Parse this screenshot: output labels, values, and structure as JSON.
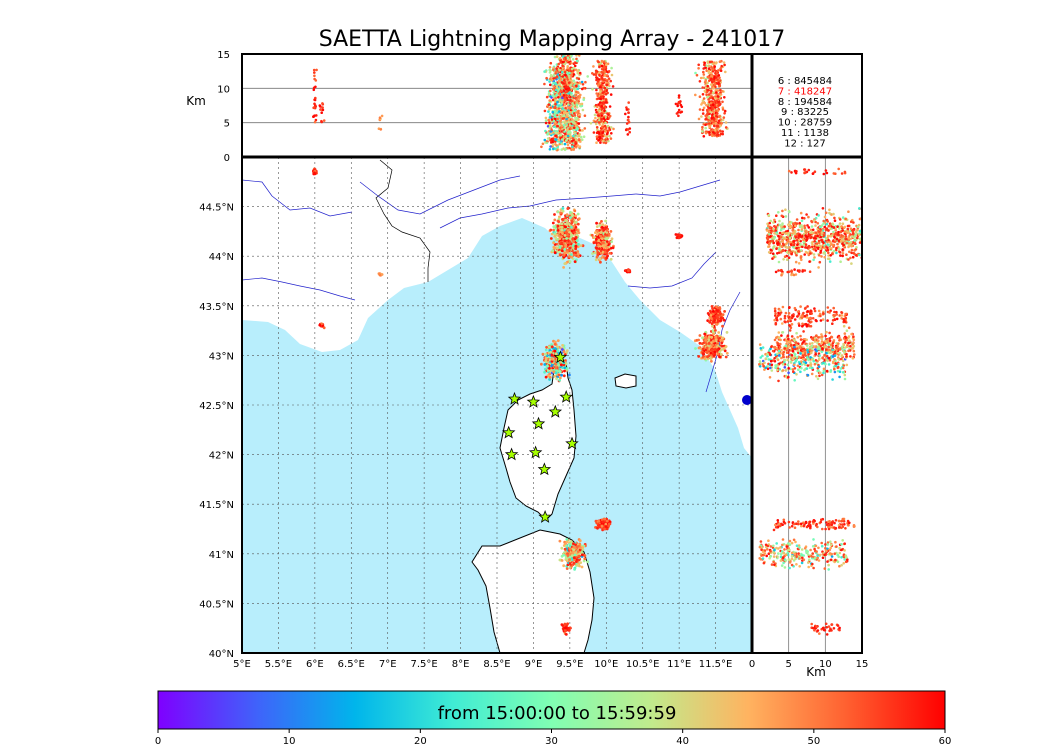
{
  "title": "SAETTA Lightning Mapping Array - 241017",
  "top_panel": {
    "ylabel": "Km",
    "yticks": [
      "15",
      "10",
      "5",
      "0"
    ]
  },
  "side_panel": {
    "xlabel": "Km",
    "xticks": [
      "0",
      "5",
      "10",
      "15"
    ]
  },
  "map": {
    "lon_ticks": [
      "5°E",
      "5.5°E",
      "6°E",
      "6.5°E",
      "7°E",
      "7.5°E",
      "8°E",
      "8.5°E",
      "9°E",
      "9.5°E",
      "10°E",
      "10.5°E",
      "11°E",
      "11.5°E"
    ],
    "lat_ticks": [
      "44.5°N",
      "44°N",
      "43.5°N",
      "43°N",
      "42.5°N",
      "42°N",
      "41.5°N",
      "41°N",
      "40.5°N",
      "40°N"
    ],
    "sea_color": "#b8eefc",
    "land_color": "#ffffff",
    "river_color": "#2222cc",
    "station_color": "#a6ff00"
  },
  "station_counts": [
    {
      "stations": "6",
      "count": "845484",
      "color": "#000000"
    },
    {
      "stations": "7",
      "count": "418247",
      "color": "#ff0000"
    },
    {
      "stations": "8",
      "count": "194584",
      "color": "#000000"
    },
    {
      "stations": "9",
      "count": "83225",
      "color": "#000000"
    },
    {
      "stations": "10",
      "count": "28759",
      "color": "#000000"
    },
    {
      "stations": "11",
      "count": "1138",
      "color": "#000000"
    },
    {
      "stations": "12",
      "count": "127",
      "color": "#000000"
    }
  ],
  "colorbar": {
    "label": "from 15:00:00 to 15:59:59",
    "ticks": [
      "0",
      "10",
      "20",
      "30",
      "40",
      "50",
      "60"
    ],
    "range": [
      0,
      60
    ],
    "colors": [
      "#7f00ff",
      "#4062fa",
      "#00b5eb",
      "#40ecd4",
      "#80feb3",
      "#c0eb8d",
      "#ffb360",
      "#ff6030",
      "#ff0000"
    ]
  },
  "chart_data": {
    "type": "scatter",
    "title": "SAETTA Lightning Mapping Array - 241017",
    "xlabel": "",
    "ylabel": "",
    "xlim": [
      5,
      12
    ],
    "ylim": [
      40,
      45
    ],
    "zlim_km": [
      0,
      15
    ],
    "time_range_minutes": [
      0,
      60
    ],
    "clusters": [
      {
        "lon": 9.45,
        "lat": 44.2,
        "lon_spread": 0.25,
        "lat_spread": 0.35,
        "alt_min": 2,
        "alt_max": 15,
        "time_min": 20,
        "time_max": 60,
        "density": 520
      },
      {
        "lon": 9.95,
        "lat": 44.15,
        "lon_spread": 0.18,
        "lat_spread": 0.25,
        "alt_min": 2,
        "alt_max": 14,
        "time_min": 30,
        "time_max": 60,
        "density": 260
      },
      {
        "lon": 11.45,
        "lat": 43.1,
        "lon_spread": 0.25,
        "lat_spread": 0.2,
        "alt_min": 3,
        "alt_max": 14,
        "time_min": 30,
        "time_max": 60,
        "density": 330
      },
      {
        "lon": 11.5,
        "lat": 43.4,
        "lon_spread": 0.15,
        "lat_spread": 0.15,
        "alt_min": 3,
        "alt_max": 13,
        "time_min": 40,
        "time_max": 60,
        "density": 140
      },
      {
        "lon": 9.3,
        "lat": 42.95,
        "lon_spread": 0.22,
        "lat_spread": 0.25,
        "alt_min": 1,
        "alt_max": 13,
        "time_min": 0,
        "time_max": 60,
        "density": 320
      },
      {
        "lon": 9.95,
        "lat": 41.3,
        "lon_spread": 0.12,
        "lat_spread": 0.08,
        "alt_min": 3,
        "alt_max": 14,
        "time_min": 45,
        "time_max": 60,
        "density": 110
      },
      {
        "lon": 9.55,
        "lat": 41.0,
        "lon_spread": 0.22,
        "lat_spread": 0.2,
        "alt_min": 1,
        "alt_max": 13,
        "time_min": 10,
        "time_max": 60,
        "density": 270
      },
      {
        "lon": 9.45,
        "lat": 40.25,
        "lon_spread": 0.08,
        "lat_spread": 0.07,
        "alt_min": 8,
        "alt_max": 12,
        "time_min": 50,
        "time_max": 60,
        "density": 35
      },
      {
        "lon": 6.0,
        "lat": 44.85,
        "lon_spread": 0.04,
        "lat_spread": 0.05,
        "alt_min": 5,
        "alt_max": 13,
        "time_min": 50,
        "time_max": 60,
        "density": 25
      },
      {
        "lon": 10.3,
        "lat": 43.85,
        "lon_spread": 0.05,
        "lat_spread": 0.03,
        "alt_min": 3,
        "alt_max": 9,
        "time_min": 50,
        "time_max": 60,
        "density": 18
      },
      {
        "lon": 11.0,
        "lat": 44.2,
        "lon_spread": 0.06,
        "lat_spread": 0.05,
        "alt_min": 6,
        "alt_max": 9,
        "time_min": 55,
        "time_max": 60,
        "density": 16
      },
      {
        "lon": 6.1,
        "lat": 43.3,
        "lon_spread": 0.05,
        "lat_spread": 0.03,
        "alt_min": 5,
        "alt_max": 8,
        "time_min": 50,
        "time_max": 60,
        "density": 12
      },
      {
        "lon": 6.9,
        "lat": 43.82,
        "lon_spread": 0.03,
        "lat_spread": 0.02,
        "alt_min": 4,
        "alt_max": 6,
        "time_min": 40,
        "time_max": 50,
        "density": 8
      }
    ],
    "stations": [
      {
        "lon": 9.37,
        "lat": 42.98
      },
      {
        "lon": 8.74,
        "lat": 42.56
      },
      {
        "lon": 9.0,
        "lat": 42.53
      },
      {
        "lon": 9.45,
        "lat": 42.58
      },
      {
        "lon": 9.3,
        "lat": 42.43
      },
      {
        "lon": 9.07,
        "lat": 42.31
      },
      {
        "lon": 8.66,
        "lat": 42.22
      },
      {
        "lon": 9.53,
        "lat": 42.11
      },
      {
        "lon": 8.7,
        "lat": 42.0
      },
      {
        "lon": 9.03,
        "lat": 42.02
      },
      {
        "lon": 9.15,
        "lat": 41.85
      },
      {
        "lon": 9.16,
        "lat": 41.37
      }
    ]
  }
}
